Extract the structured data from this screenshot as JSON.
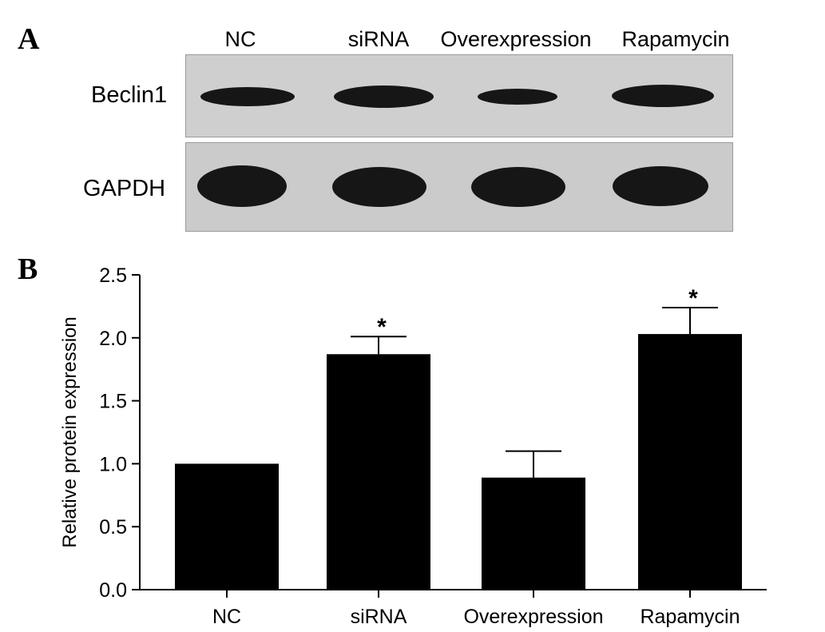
{
  "panel_a": {
    "letter": "A",
    "lane_labels": [
      "NC",
      "siRNA",
      "Overexpression",
      "Rapamycin"
    ],
    "row_labels": {
      "beclin1": "Beclin1",
      "gapdh": "GAPDH"
    },
    "band_color": "#161616",
    "membrane_color": "#cfcfcf"
  },
  "panel_b": {
    "letter": "B"
  },
  "chart_data": {
    "type": "bar",
    "categories": [
      "NC",
      "siRNA",
      "Overexpression",
      "Rapamycin"
    ],
    "values": [
      1.0,
      1.87,
      0.89,
      2.03
    ],
    "errors": [
      0.0,
      0.14,
      0.21,
      0.21
    ],
    "significance": [
      "",
      "*",
      "",
      "*"
    ],
    "xlabel": "",
    "ylabel": "Relative protein expression",
    "ylim": [
      0,
      2.5
    ],
    "yticks": [
      "0.0",
      "0.5",
      "1.0",
      "1.5",
      "2.0",
      "2.5"
    ],
    "bar_color": "#000000",
    "grid": false
  }
}
